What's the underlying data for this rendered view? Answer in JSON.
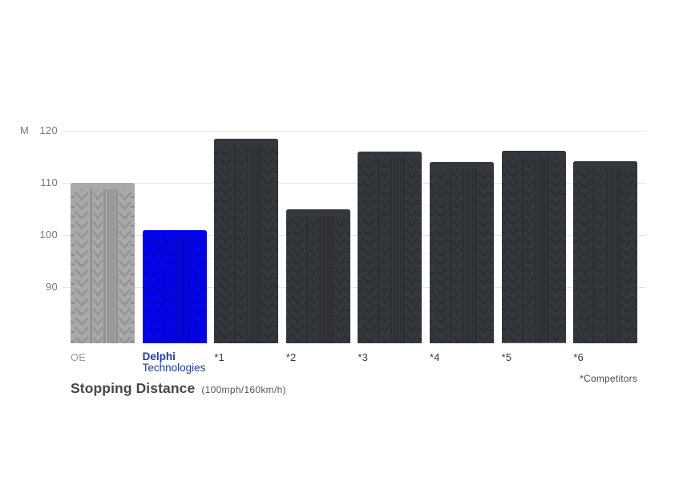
{
  "chart_data": {
    "type": "bar",
    "title": "Stopping Distance",
    "subtitle": "(100mph/160km/h)",
    "unit_label": "M",
    "ylabel": "M",
    "xlabel": "",
    "footnote": "*Competitors",
    "yticks": [
      120,
      110,
      100,
      90
    ],
    "ylim": [
      79,
      121
    ],
    "grid": "horizontal lines at yticks, light gray, no x-axis line",
    "legend": "none",
    "bar_texture": "tire-tread",
    "categories": [
      "OE",
      "Delphi Technologies",
      "*1",
      "*2",
      "*3",
      "*4",
      "*5",
      "*6"
    ],
    "values": [
      110,
      101,
      118.5,
      105,
      116,
      114,
      116.1,
      114.2
    ],
    "series": [
      {
        "name": "Stopping distance (m)",
        "values": [
          110,
          101,
          118.5,
          105,
          116,
          114,
          116.1,
          114.2
        ]
      }
    ],
    "bar_colors": [
      "#a9a9a9",
      "#0404ea",
      "#34373b",
      "#34373b",
      "#34373b",
      "#34373b",
      "#34373b",
      "#34373b"
    ],
    "delphi_label_lines": [
      "Delphi",
      "Technologies"
    ]
  },
  "colors": {
    "background": "#ffffff",
    "oe_bar": "#a9a9a9",
    "delphi_bar": "#0404ea",
    "competitor_bar": "#34373b",
    "delphi_logo_blue": "#1e3aab",
    "gridline": "#e5e5e7",
    "tick_label": "#77787c",
    "oe_label": "#9b9ba0",
    "competitor_label": "#38383d",
    "footnote": "#4d4d52",
    "title": "#46464c",
    "subtitle": "#55555b"
  }
}
